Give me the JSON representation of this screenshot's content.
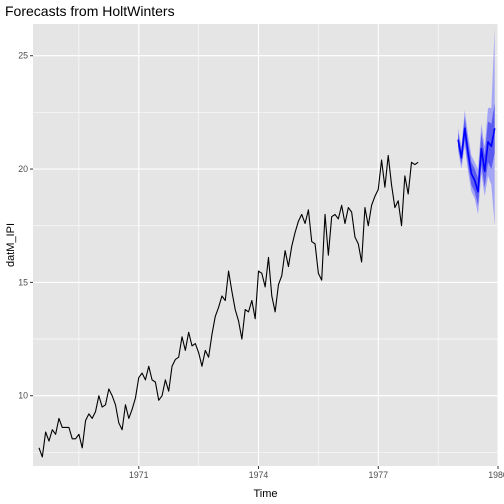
{
  "chart_data": {
    "type": "line",
    "title": "Forecasts from HoltWinters",
    "xlabel": "Time",
    "ylabel": "datM_IPI",
    "xlim": [
      1968.35,
      1980.0
    ],
    "ylim": [
      6.9,
      26.4
    ],
    "x_ticks": [
      1971,
      1974,
      1977,
      1980
    ],
    "x_tick_labels": [
      "1971",
      "1974",
      "1977",
      "1980"
    ],
    "y_ticks": [
      10,
      15,
      20,
      25
    ],
    "y_tick_labels": [
      "10",
      "15",
      "20",
      "25"
    ],
    "grid": true,
    "legend": "none",
    "colors": {
      "panel": "#e5e5e5",
      "grid_major": "#ffffff",
      "actual_line": "#000000",
      "forecast_line": "#0000ff",
      "interval_80": "#5c5cf0",
      "interval_95": "#a5a5f5"
    },
    "series": [
      {
        "role": "actual",
        "x_start": 1968.5,
        "step": 0.08333,
        "values": [
          7.7,
          7.3,
          8.4,
          8.0,
          8.5,
          8.3,
          9.0,
          8.6,
          8.6,
          8.6,
          8.1,
          8.1,
          8.3,
          7.7,
          8.9,
          9.2,
          9.0,
          9.3,
          10.0,
          9.5,
          9.6,
          10.3,
          10.0,
          9.6,
          8.8,
          8.5,
          9.6,
          9.0,
          9.4,
          9.9,
          10.8,
          11.0,
          10.7,
          11.3,
          10.7,
          10.6,
          9.8,
          10.0,
          10.7,
          10.2,
          11.3,
          11.6,
          11.7,
          12.6,
          12.0,
          12.8,
          12.2,
          12.3,
          11.9,
          11.3,
          12.0,
          11.7,
          12.7,
          13.5,
          13.9,
          14.4,
          14.2,
          15.5,
          14.6,
          13.8,
          13.3,
          12.5,
          13.8,
          13.7,
          14.2,
          13.4,
          15.5,
          15.4,
          14.8,
          16.1,
          14.4,
          13.7,
          14.9,
          15.3,
          16.4,
          15.7,
          16.6,
          17.2,
          17.7,
          18.0,
          17.6,
          18.2,
          16.8,
          16.7,
          15.4,
          15.1,
          18.0,
          16.2,
          17.9,
          18.0,
          17.8,
          18.4,
          17.6,
          18.3,
          18.1,
          17.0,
          16.7,
          15.9,
          18.3,
          17.5,
          18.4,
          18.8,
          19.1,
          20.4,
          19.2,
          20.6,
          19.3,
          18.3,
          18.6,
          17.5,
          19.7,
          18.9,
          20.3,
          20.2,
          20.3
        ]
      },
      {
        "role": "forecast",
        "x_start": 1979.0,
        "step": 0.08333,
        "values": [
          21.3,
          20.5,
          21.8,
          20.7,
          19.8,
          19.5,
          19.0,
          20.9,
          19.9,
          21.2,
          21.0,
          21.8
        ],
        "lower_80": [
          21.0,
          20.2,
          21.3,
          20.2,
          19.3,
          19.0,
          18.4,
          20.2,
          19.2,
          20.3,
          20.0,
          20.7
        ],
        "upper_80": [
          21.6,
          20.8,
          22.3,
          21.2,
          20.3,
          20.0,
          19.6,
          21.6,
          20.6,
          22.1,
          22.0,
          22.9
        ],
        "lower_95": [
          20.8,
          20.0,
          21.0,
          19.9,
          19.0,
          18.7,
          18.0,
          19.8,
          18.8,
          19.7,
          19.3,
          17.5
        ],
        "upper_95": [
          21.8,
          21.0,
          22.6,
          21.5,
          20.6,
          20.3,
          20.0,
          22.0,
          21.0,
          22.7,
          22.7,
          26.2
        ]
      }
    ]
  }
}
